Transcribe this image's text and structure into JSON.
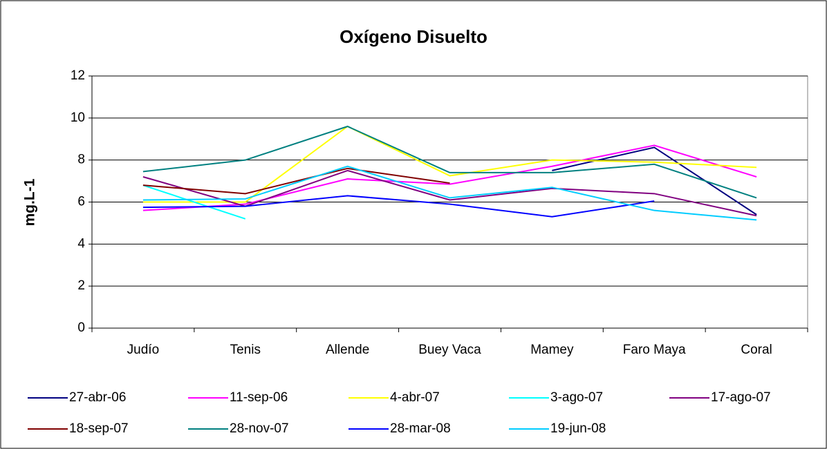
{
  "chart_data": {
    "type": "line",
    "title": "Oxígeno Disuelto",
    "y_label": "mg.L-1",
    "categories": [
      "Judío",
      "Tenis",
      "Allende",
      "Buey Vaca",
      "Mamey",
      "Faro Maya",
      "Coral"
    ],
    "ylim": [
      0,
      12
    ],
    "yticks": [
      0,
      2,
      4,
      6,
      8,
      10,
      12
    ],
    "grid": true,
    "series": [
      {
        "name": "27-abr-06",
        "color": "#000080",
        "values": [
          null,
          null,
          null,
          null,
          7.5,
          8.6,
          5.4
        ]
      },
      {
        "name": "11-sep-06",
        "color": "#ff00ff",
        "values": [
          5.6,
          5.9,
          7.1,
          6.85,
          7.7,
          8.7,
          7.2
        ]
      },
      {
        "name": "4-abr-07",
        "color": "#ffff00",
        "values": [
          6.0,
          6.0,
          9.6,
          7.25,
          8.0,
          7.9,
          7.65
        ]
      },
      {
        "name": "3-ago-07",
        "color": "#00ffff",
        "values": [
          6.8,
          5.2,
          null,
          null,
          null,
          null,
          null
        ]
      },
      {
        "name": "17-ago-07",
        "color": "#800080",
        "values": [
          7.2,
          5.8,
          7.5,
          6.1,
          6.65,
          6.4,
          5.35
        ]
      },
      {
        "name": "18-sep-07",
        "color": "#800000",
        "values": [
          6.8,
          6.4,
          7.6,
          6.9,
          null,
          null,
          null
        ]
      },
      {
        "name": "28-nov-07",
        "color": "#008080",
        "values": [
          7.45,
          8.0,
          9.6,
          7.4,
          7.4,
          7.8,
          6.2
        ]
      },
      {
        "name": "28-mar-08",
        "color": "#0000ff",
        "values": [
          5.75,
          5.8,
          6.3,
          5.9,
          5.3,
          6.05,
          null
        ]
      },
      {
        "name": "19-jun-08",
        "color": "#00ccff",
        "values": [
          6.1,
          6.15,
          7.7,
          6.2,
          6.7,
          5.6,
          5.15
        ]
      }
    ]
  }
}
